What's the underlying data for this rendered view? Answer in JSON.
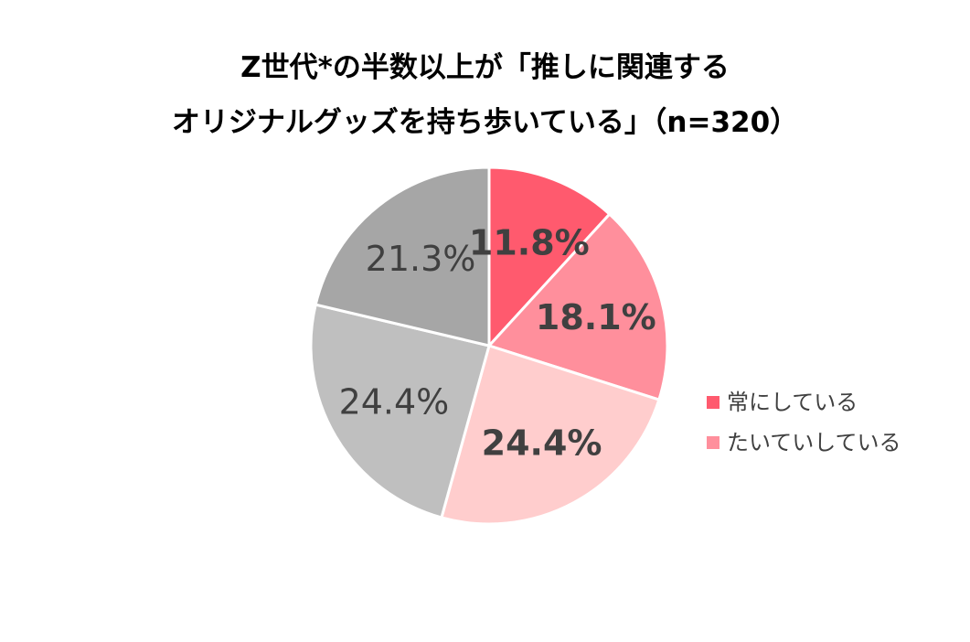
{
  "title_lines": [
    "Z世代*の半数以上が「推しに関連する",
    "オリジナルグッズを持ち歩いている」（n=320）"
  ],
  "chart_data": {
    "type": "pie",
    "title": "Z世代*の半数以上が「推しに関連するオリジナルグッズを持ち歩いている」（n=320）",
    "start_angle_deg": 0,
    "direction": "clockwise",
    "legend_placement": "right",
    "slices": [
      {
        "name": "常にしている",
        "value": 11.8,
        "label": "11.8%",
        "color": "#FF5A6E",
        "label_color": "#404040",
        "bold": true,
        "in_legend": true
      },
      {
        "name": "たいていしている",
        "value": 18.1,
        "label": "18.1%",
        "color": "#FF8F9C",
        "label_color": "#404040",
        "bold": true,
        "in_legend": true
      },
      {
        "name": "",
        "value": 24.4,
        "label": "24.4%",
        "color": "#FFCDCD",
        "label_color": "#404040",
        "bold": true,
        "in_legend": false
      },
      {
        "name": "",
        "value": 24.4,
        "label": "24.4%",
        "color": "#BFBFBF",
        "label_color": "#404040",
        "bold": false,
        "in_legend": false
      },
      {
        "name": "",
        "value": 21.3,
        "label": "21.3%",
        "color": "#A6A6A6",
        "label_color": "#404040",
        "bold": false,
        "in_legend": false
      }
    ]
  }
}
